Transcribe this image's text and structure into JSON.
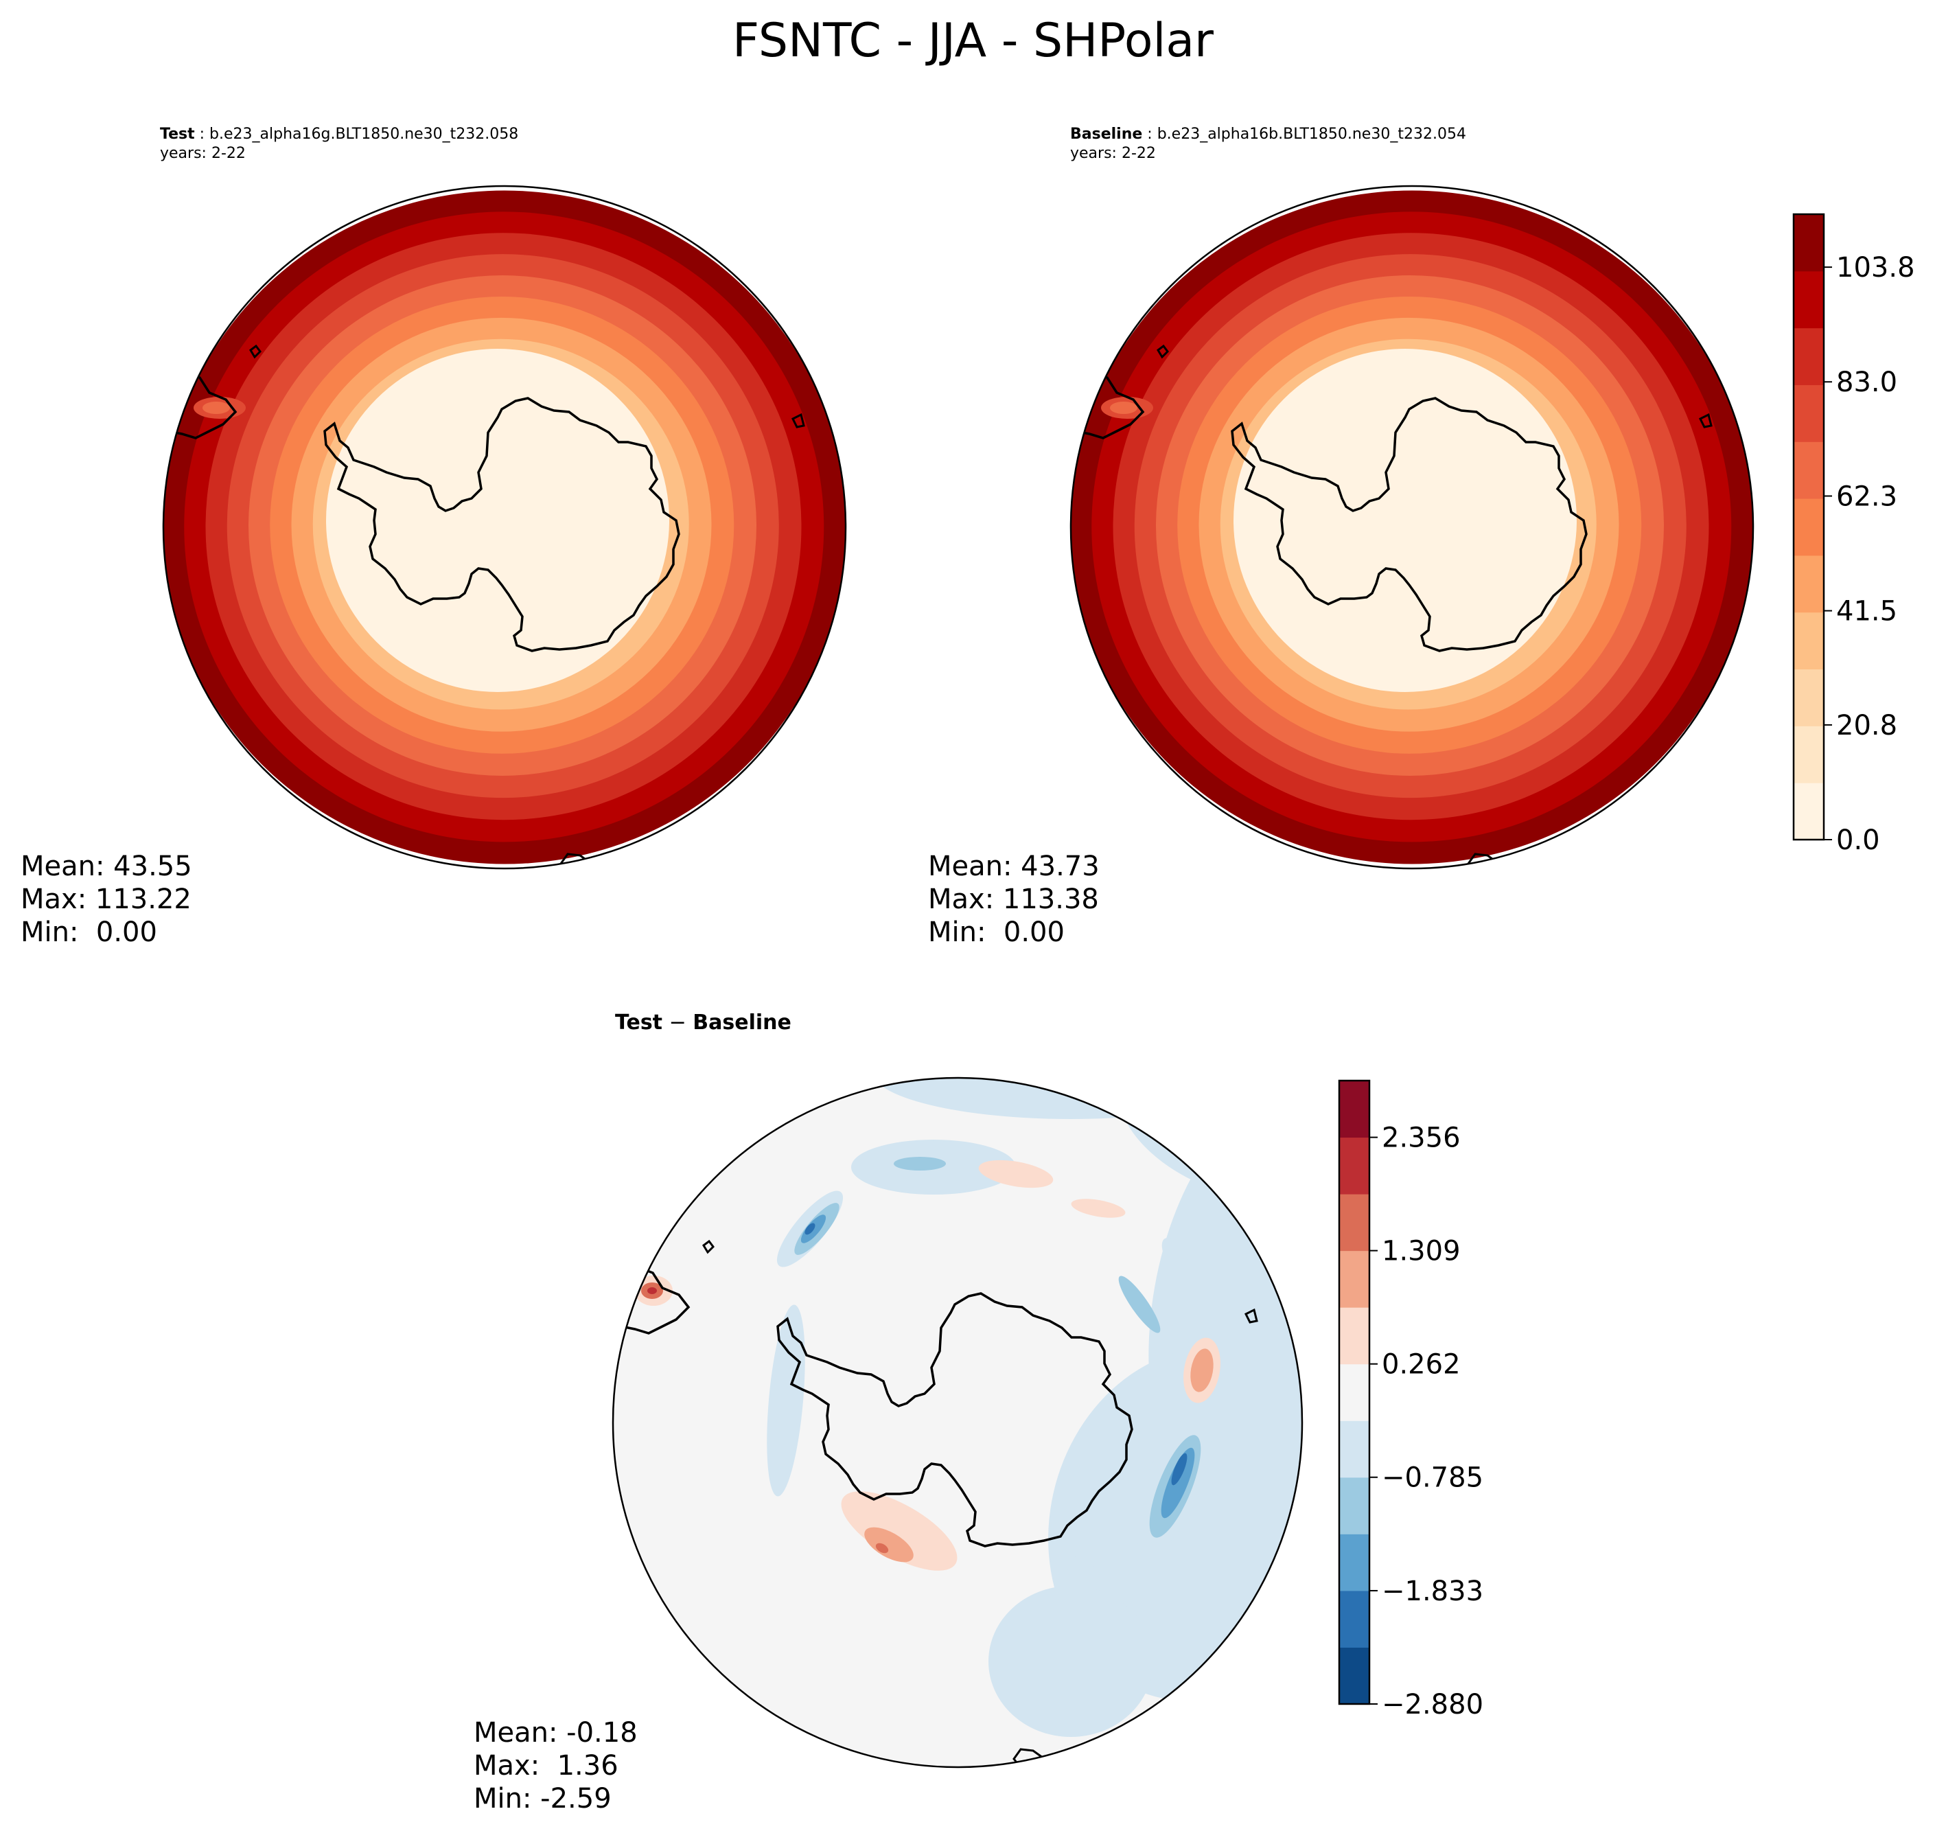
{
  "figure": {
    "suptitle": "FSNTC - JJA - SHPolar"
  },
  "panels": {
    "test": {
      "label": "Test",
      "case": "b.e23_alpha16g.BLT1850.ne30_t232.058",
      "years": "years: 2-22",
      "stats": {
        "mean": "Mean: 43.55",
        "max": "Max: 113.22",
        "min": "Min:  0.00"
      }
    },
    "baseline": {
      "label": "Baseline",
      "case": "b.e23_alpha16b.BLT1850.ne30_t232.054",
      "years": "years: 2-22",
      "stats": {
        "mean": "Mean: 43.73",
        "max": "Max: 113.38",
        "min": "Min:  0.00"
      }
    },
    "diff": {
      "title_left": "Test",
      "title_sep": " − ",
      "title_right": "Baseline",
      "stats": {
        "mean": "Mean: -0.18",
        "max": "Max:  1.36",
        "min": "Min: -2.59"
      }
    }
  },
  "chart_data": [
    {
      "type": "heatmap",
      "name": "Test",
      "projection": "south polar stereographic",
      "title": "Test : b.e23_alpha16g.BLT1850.ne30_t232.058",
      "colormap": "OrRd",
      "levels_count": 11,
      "vmin": 0.0,
      "vmax": 113.22,
      "mean": 43.55
    },
    {
      "type": "heatmap",
      "name": "Baseline",
      "projection": "south polar stereographic",
      "title": "Baseline : b.e23_alpha16b.BLT1850.ne30_t232.054",
      "colormap": "OrRd",
      "levels_count": 11,
      "vmin": 0.0,
      "vmax": 113.38,
      "mean": 43.73,
      "colorbar": {
        "ticks": [
          0.0,
          20.8,
          41.5,
          62.3,
          83.0,
          103.8
        ],
        "tick_labels": [
          "0.0",
          "20.8",
          "41.5",
          "62.3",
          "83.0",
          "103.8"
        ],
        "range": [
          0.0,
          113.4
        ],
        "colors": [
          "#fff3e2",
          "#fee6c6",
          "#fdd5a8",
          "#fdc086",
          "#fca366",
          "#f8824b",
          "#ee6a45",
          "#e04a33",
          "#cf2b1f",
          "#b70000",
          "#8c0000"
        ]
      }
    },
    {
      "type": "heatmap",
      "name": "Test - Baseline",
      "projection": "south polar stereographic",
      "colormap": "RdBu_r",
      "vmin": -2.59,
      "vmax": 1.36,
      "mean": -0.18,
      "colorbar": {
        "ticks": [
          -2.88,
          -1.833,
          -0.785,
          0.262,
          1.309,
          2.356
        ],
        "tick_labels": [
          "−2.880",
          "−1.833",
          "−0.785",
          "0.262",
          "1.309",
          "2.356"
        ],
        "range": [
          -2.88,
          2.88
        ],
        "colors": [
          "#0d4a87",
          "#2a71b2",
          "#5ba1cf",
          "#9ccae1",
          "#d3e5f1",
          "#f5f5f5",
          "#fbdcce",
          "#f2a688",
          "#db6d56",
          "#bd2e33",
          "#8c0c25"
        ]
      }
    }
  ]
}
